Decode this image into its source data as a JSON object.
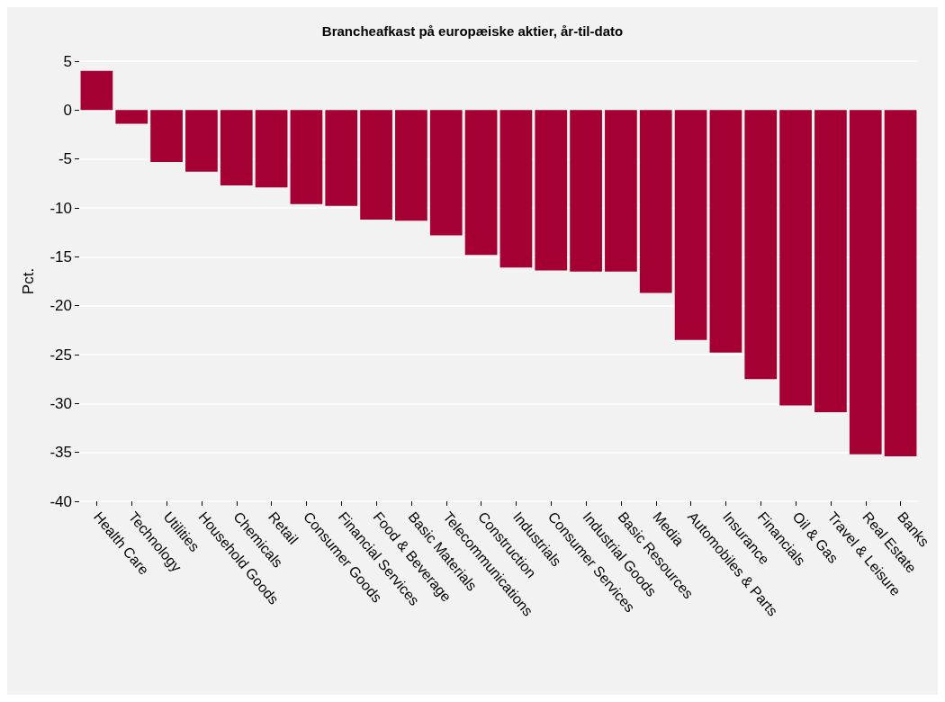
{
  "chart_data": {
    "type": "bar",
    "title": "Brancheafkast på europæiske aktier, år-til-dato",
    "ylabel": "Pct.",
    "categories": [
      "Health Care",
      "Technology",
      "Utilities",
      "Household Goods",
      "Chemicals",
      "Retail",
      "Consumer Goods",
      "Financial Services",
      "Food & Beverage",
      "Basic Materials",
      "Telecommunications",
      "Construction",
      "Industrials",
      "Consumer Services",
      "Industrial Goods",
      "Basic Resources",
      "Media",
      "Automobiles & Parts",
      "Insurance",
      "Financials",
      "Oil & Gas",
      "Travel & Leisure",
      "Real Estate",
      "Banks"
    ],
    "values": [
      4.0,
      -1.4,
      -5.3,
      -6.3,
      -7.7,
      -7.9,
      -9.6,
      -9.8,
      -11.2,
      -11.3,
      -12.8,
      -14.8,
      -16.1,
      -16.4,
      -16.5,
      -16.5,
      -18.7,
      -23.5,
      -24.8,
      -27.5,
      -30.2,
      -30.9,
      -35.2,
      -35.4
    ],
    "color": "#a50034",
    "ylim": [
      -40,
      5
    ],
    "yticks": [
      -40,
      -35,
      -30,
      -25,
      -20,
      -15,
      -10,
      -5,
      0,
      5
    ],
    "grid": "y"
  }
}
